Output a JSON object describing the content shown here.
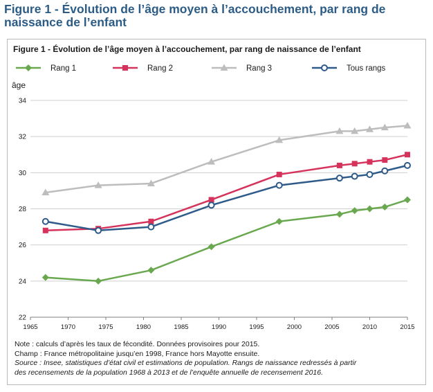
{
  "page": {
    "title": "Figure 1 - Évolution de l’âge moyen à l’accouchement, par rang de naissance de l’enfant"
  },
  "figure": {
    "title": "Figure 1 - Évolution de l’âge moyen à l’accouchement, par rang de naissance de l’enfant",
    "note": "Note : calculs d’après les taux de fécondité. Données provisoires pour 2015.",
    "champ": "Champ : France métropolitaine jusqu’en 1998, France hors Mayotte ensuite.",
    "source_line1": "Source : Insee, statistiques d’état civil et estimations de population. Rangs de naissance redressés à partir",
    "source_line2": "des recensements de la population 1968 à 2013 et de l’enquête annuelle de recensement 2016."
  },
  "chart_data": {
    "type": "line",
    "title": "Figure 1 - Évolution de l’âge moyen à l’accouchement, par rang de naissance de l’enfant",
    "xlabel": "",
    "ylabel": "âge",
    "xlim": [
      1965,
      2015
    ],
    "ylim": [
      22,
      34
    ],
    "x_ticks": [
      1965,
      1970,
      1975,
      1980,
      1985,
      1990,
      1995,
      2000,
      2005,
      2010,
      2015
    ],
    "y_ticks": [
      22,
      24,
      26,
      28,
      30,
      32,
      34
    ],
    "grid": "horizontal",
    "legend_position": "top",
    "series": [
      {
        "name": "Rang 1",
        "color": "#6aa84f",
        "marker": "diamond",
        "points": [
          [
            1967,
            24.2
          ],
          [
            1974,
            24.0
          ],
          [
            1981,
            24.6
          ],
          [
            1989,
            25.9
          ],
          [
            1998,
            27.3
          ],
          [
            2006,
            27.7
          ],
          [
            2008,
            27.9
          ],
          [
            2010,
            28.0
          ],
          [
            2012,
            28.1
          ],
          [
            2015,
            28.5
          ]
        ]
      },
      {
        "name": "Rang 2",
        "color": "#d6335c",
        "marker": "square",
        "points": [
          [
            1967,
            26.8
          ],
          [
            1974,
            26.9
          ],
          [
            1981,
            27.3
          ],
          [
            1989,
            28.5
          ],
          [
            1998,
            29.9
          ],
          [
            2006,
            30.4
          ],
          [
            2008,
            30.5
          ],
          [
            2010,
            30.6
          ],
          [
            2012,
            30.7
          ],
          [
            2015,
            31.0
          ]
        ]
      },
      {
        "name": "Rang 3",
        "color": "#bdbdbd",
        "marker": "triangle",
        "points": [
          [
            1967,
            28.9
          ],
          [
            1974,
            29.3
          ],
          [
            1981,
            29.4
          ],
          [
            1989,
            30.6
          ],
          [
            1998,
            31.8
          ],
          [
            2006,
            32.3
          ],
          [
            2008,
            32.3
          ],
          [
            2010,
            32.4
          ],
          [
            2012,
            32.5
          ],
          [
            2015,
            32.6
          ]
        ]
      },
      {
        "name": "Tous rangs",
        "color": "#2e5b8a",
        "marker": "circle",
        "points": [
          [
            1967,
            27.3
          ],
          [
            1974,
            26.8
          ],
          [
            1981,
            27.0
          ],
          [
            1989,
            28.2
          ],
          [
            1998,
            29.3
          ],
          [
            2006,
            29.7
          ],
          [
            2008,
            29.8
          ],
          [
            2010,
            29.9
          ],
          [
            2012,
            30.1
          ],
          [
            2015,
            30.4
          ]
        ]
      }
    ]
  }
}
